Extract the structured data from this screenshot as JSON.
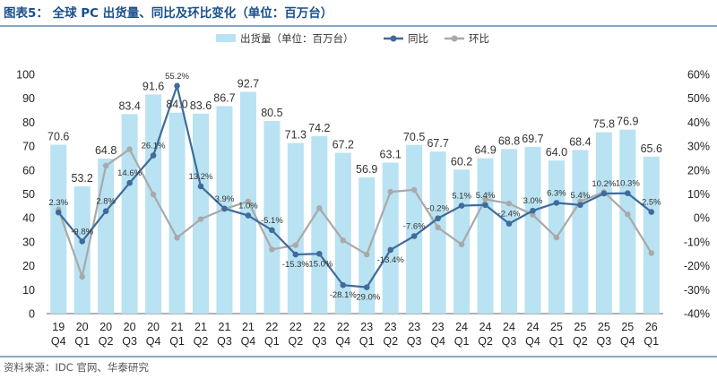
{
  "title": "图表5：  全球 PC 出货量、同比及环比变化（单位：百万台）",
  "source": "资料来源：IDC 官网、华泰研究",
  "colors": {
    "bar": "#b9e2f2",
    "yoy": "#3f6b9c",
    "qoq": "#a9a9a9",
    "title": "#1a4f8a",
    "divider": "#1a4f8a"
  },
  "legend": {
    "bar": "出货量（单位：百万台）",
    "yoy": "同比",
    "qoq": "环比"
  },
  "chart_data": {
    "type": "bar",
    "categories": [
      [
        "19",
        "Q4"
      ],
      [
        "20",
        "Q1"
      ],
      [
        "20",
        "Q2"
      ],
      [
        "20",
        "Q3"
      ],
      [
        "20",
        "Q4"
      ],
      [
        "21",
        "Q1"
      ],
      [
        "21",
        "Q2"
      ],
      [
        "21",
        "Q3"
      ],
      [
        "21",
        "Q4"
      ],
      [
        "22",
        "Q1"
      ],
      [
        "22",
        "Q2"
      ],
      [
        "22",
        "Q3"
      ],
      [
        "22",
        "Q4"
      ],
      [
        "23",
        "Q1"
      ],
      [
        "23",
        "Q2"
      ],
      [
        "23",
        "Q3"
      ],
      [
        "23",
        "Q4"
      ],
      [
        "24",
        "Q1"
      ],
      [
        "24",
        "Q2"
      ],
      [
        "24",
        "Q3"
      ],
      [
        "24",
        "Q4"
      ],
      [
        "25",
        "Q1"
      ],
      [
        "25",
        "Q2"
      ],
      [
        "25",
        "Q3"
      ],
      [
        "25",
        "Q4"
      ],
      [
        "26",
        "Q1"
      ]
    ],
    "shipments": {
      "values": [
        70.6,
        53.2,
        64.8,
        83.4,
        91.6,
        84.0,
        83.6,
        86.7,
        92.7,
        80.5,
        71.3,
        74.2,
        67.2,
        56.9,
        63.1,
        70.5,
        67.7,
        60.2,
        64.9,
        68.8,
        69.7,
        64.0,
        68.4,
        75.8,
        76.9,
        65.6
      ],
      "labels": [
        "70.6",
        "53.2",
        "64.8",
        "83.4",
        "91.6",
        "84.0",
        "83.6",
        "86.7",
        "92.7",
        "80.5",
        "71.3",
        "74.2",
        "67.2",
        "56.9",
        "63.1",
        "70.5",
        "67.7",
        "60.2",
        "64.9",
        "68.8",
        "69.7",
        "64.0",
        "68.4",
        "75.8",
        "76.9",
        "65.6"
      ]
    },
    "yoy": {
      "values": [
        2.3,
        -9.8,
        2.8,
        14.6,
        26.1,
        55.2,
        13.2,
        3.9,
        1.0,
        -5.1,
        -15.3,
        -15.0,
        -28.1,
        -29.0,
        -13.4,
        -7.6,
        -0.2,
        5.1,
        5.4,
        -2.4,
        3.0,
        6.3,
        5.4,
        10.2,
        10.3,
        2.5
      ],
      "labels": [
        "2.3%",
        "-9.8%",
        "2.8%",
        "14.6%",
        "26.1%",
        "55.2%",
        "13.2%",
        "3.9%",
        "1.0%",
        "-5.1%",
        "-15.3%",
        "-15.0%",
        "-28.1%",
        "-29.0%",
        "-13.4%",
        "-7.6%",
        "-0.2%",
        "5.1%",
        "5.4%",
        "-2.4%",
        "3.0%",
        "6.3%",
        "5.4%",
        "10.2%",
        "10.3%",
        "2.5%"
      ]
    },
    "qoq": {
      "values": [
        3.5,
        -24.6,
        21.8,
        28.7,
        9.8,
        -8.3,
        -0.5,
        3.7,
        6.9,
        -13.2,
        -11.4,
        4.1,
        -9.4,
        -15.3,
        10.9,
        11.7,
        -4.0,
        -11.1,
        7.8,
        6.0,
        1.3,
        -8.2,
        6.9,
        10.8,
        1.5,
        -14.7
      ]
    },
    "y_left": {
      "min": 0,
      "max": 100,
      "ticks": [
        "0",
        "10",
        "20",
        "30",
        "40",
        "50",
        "60",
        "70",
        "80",
        "90",
        "100"
      ]
    },
    "y_right": {
      "min": -40,
      "max": 60,
      "ticks": [
        "-40%",
        "-30%",
        "-20%",
        "-10%",
        "0%",
        "10%",
        "20%",
        "30%",
        "40%",
        "50%",
        "60%"
      ]
    },
    "legend_position": "top-center",
    "grid": false
  }
}
